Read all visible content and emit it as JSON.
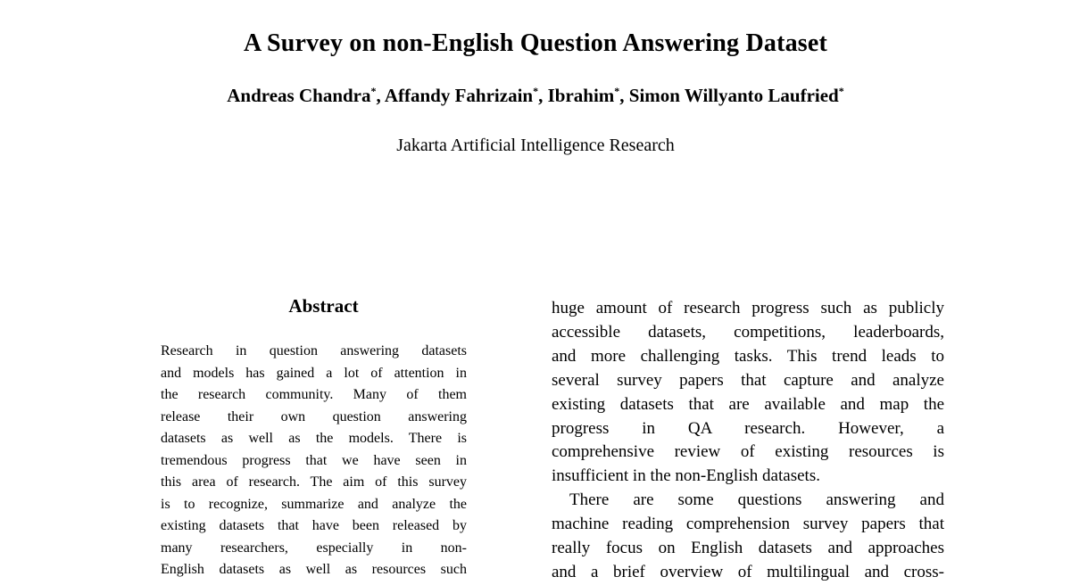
{
  "page": {
    "background_color": "#ffffff",
    "text_color": "#000000"
  },
  "paper": {
    "title": "A Survey on non-English Question Answering Dataset",
    "authors": [
      {
        "name": "Andreas Chandra",
        "mark": "*",
        "sep": ", "
      },
      {
        "name": "Affandy Fahrizain",
        "mark": "*",
        "sep": ", "
      },
      {
        "name": "Ibrahim",
        "mark": "*",
        "sep": ", "
      },
      {
        "name": "Simon Willyanto Laufried",
        "mark": "*",
        "sep": ""
      }
    ],
    "affiliation": "Jakarta Artificial Intelligence Research",
    "abstract": {
      "heading": "Abstract",
      "lines": [
        {
          "text": "Research in question answering datasets",
          "justify": true
        },
        {
          "text": "and models has gained a lot of attention in",
          "justify": true
        },
        {
          "text": "the research community. Many of them",
          "justify": true
        },
        {
          "text": "release their own question answering",
          "justify": true
        },
        {
          "text": "datasets as well as the models. There is",
          "justify": true
        },
        {
          "text": "tremendous progress that we have seen in",
          "justify": true
        },
        {
          "text": "this area of research. The aim of this survey",
          "justify": true
        },
        {
          "text": "is to recognize, summarize and analyze the",
          "justify": true
        },
        {
          "text": "existing datasets that have been released by",
          "justify": true
        },
        {
          "text": "many researchers, especially in non-",
          "justify": true
        },
        {
          "text": "English datasets as well as resources such",
          "justify": true
        }
      ]
    },
    "body": {
      "paragraphs": [
        {
          "indent": false,
          "lines": [
            {
              "text": "huge amount of research progress such as publicly",
              "justify": true
            },
            {
              "text": "accessible datasets, competitions, leaderboards,",
              "justify": true
            },
            {
              "text": "and more challenging tasks. This trend leads to",
              "justify": true
            },
            {
              "text": "several survey papers that capture and analyze",
              "justify": true
            },
            {
              "text": "existing datasets that are available and map the",
              "justify": true
            },
            {
              "text": "progress in QA research. However, a",
              "justify": true
            },
            {
              "text": "comprehensive review of existing resources is",
              "justify": true
            },
            {
              "text": "insufficient in the non-English datasets.",
              "justify": false
            }
          ]
        },
        {
          "indent": true,
          "lines": [
            {
              "text": "There are some questions answering and",
              "justify": true
            },
            {
              "text": "machine reading comprehension survey papers that",
              "justify": true
            },
            {
              "text": "really focus on English datasets and approaches",
              "justify": true
            },
            {
              "text": "and a brief overview of multilingual and cross-",
              "justify": true
            }
          ]
        }
      ]
    }
  }
}
